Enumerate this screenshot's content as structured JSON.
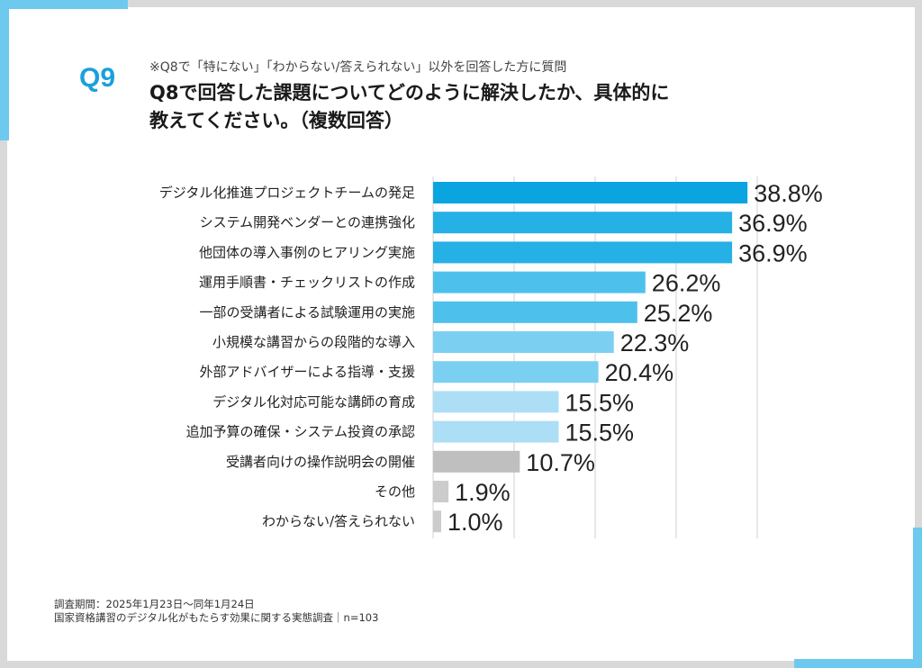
{
  "header": {
    "question_number": "Q9",
    "note": "※Q8で「特にない」「わからない/答えられない」以外を回答した方に質問",
    "title_line1": "Q8で回答した課題についてどのように解決したか、具体的に",
    "title_line2": "教えてください。（複数回答）"
  },
  "footer": {
    "period": "調査期間：2025年1月23日～同年1月24日",
    "survey": "国家資格講習のデジタル化がもたらす効果に関する実態調査｜n=103"
  },
  "colors": {
    "accent": "#6ec9ef",
    "badge": "#1aa0dc",
    "grid": "#d0d0d0"
  },
  "chart_data": {
    "type": "bar",
    "orientation": "horizontal",
    "title": "Q8で回答した課題についてどのように解決したか、具体的に教えてください。（複数回答）",
    "xlabel": "",
    "ylabel": "",
    "unit": "%",
    "xlim": [
      0,
      40
    ],
    "grid": true,
    "legend": "none",
    "categories": [
      "デジタル化推進プロジェクトチームの発足",
      "システム開発ベンダーとの連携強化",
      "他団体の導入事例のヒアリング実施",
      "運用手順書・チェックリストの作成",
      "一部の受講者による試験運用の実施",
      "小規模な講習からの段階的な導入",
      "外部アドバイザーによる指導・支援",
      "デジタル化対応可能な講師の育成",
      "追加予算の確保・システム投資の承認",
      "受講者向けの操作説明会の開催",
      "その他",
      "わからない/答えられない"
    ],
    "values": [
      38.8,
      36.9,
      36.9,
      26.2,
      25.2,
      22.3,
      20.4,
      15.5,
      15.5,
      10.7,
      1.9,
      1.0
    ],
    "value_labels": [
      "38.8%",
      "36.9%",
      "36.9%",
      "26.2%",
      "25.2%",
      "22.3%",
      "20.4%",
      "15.5%",
      "15.5%",
      "10.7%",
      "1.9%",
      "1.0%"
    ],
    "bar_colors": [
      "#0aa5e0",
      "#25b0e6",
      "#25b0e6",
      "#4ec0ec",
      "#4ec0ec",
      "#7bd0f1",
      "#7bd0f1",
      "#acdff5",
      "#acdff5",
      "#bfbfbf",
      "#cccccc",
      "#cccccc"
    ]
  }
}
